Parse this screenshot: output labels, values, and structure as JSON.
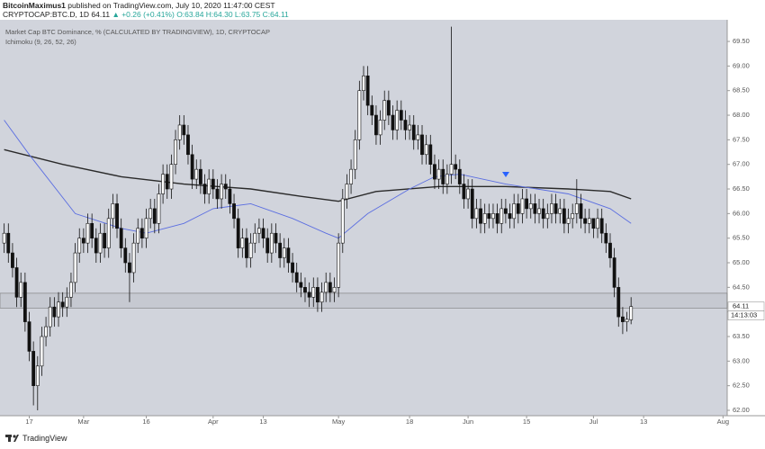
{
  "header": {
    "author": "BitcoinMaximus1",
    "published": "published on TradingView.com, July 10, 2020 11:47:00 CEST",
    "symbol": "CRYPTOCAP:BTC.D, 1D",
    "price": "64.11",
    "change": "▲ +0.26 (+0.41%)",
    "ohlc": "O:63.84 H:64.30 L:63.75 C:64.11"
  },
  "footer": {
    "brand": "TradingView"
  },
  "chart_data": {
    "type": "candlestick",
    "legend": [
      "Market Cap BTC Dominance, % (CALCULATED BY TRADINGVIEW), 1D, CRYPTOCAP",
      "Ichimoku (9, 26, 52, 26)"
    ],
    "x": [
      "2020-02-11",
      "2020-02-12",
      "2020-02-13",
      "2020-02-14",
      "2020-02-15",
      "2020-02-16",
      "2020-02-17",
      "2020-02-18",
      "2020-02-19",
      "2020-02-20",
      "2020-02-21",
      "2020-02-22",
      "2020-02-23",
      "2020-02-24",
      "2020-02-25",
      "2020-02-26",
      "2020-02-27",
      "2020-02-28",
      "2020-02-29",
      "2020-03-01",
      "2020-03-02",
      "2020-03-03",
      "2020-03-04",
      "2020-03-05",
      "2020-03-06",
      "2020-03-07",
      "2020-03-08",
      "2020-03-09",
      "2020-03-10",
      "2020-03-11",
      "2020-03-12",
      "2020-03-13",
      "2020-03-14",
      "2020-03-15",
      "2020-03-16",
      "2020-03-17",
      "2020-03-18",
      "2020-03-19",
      "2020-03-20",
      "2020-03-21",
      "2020-03-22",
      "2020-03-23",
      "2020-03-24",
      "2020-03-25",
      "2020-03-26",
      "2020-03-27",
      "2020-03-28",
      "2020-03-29",
      "2020-03-30",
      "2020-03-31",
      "2020-04-01",
      "2020-04-02",
      "2020-04-03",
      "2020-04-04",
      "2020-04-05",
      "2020-04-06",
      "2020-04-07",
      "2020-04-08",
      "2020-04-09",
      "2020-04-10",
      "2020-04-11",
      "2020-04-12",
      "2020-04-13",
      "2020-04-14",
      "2020-04-15",
      "2020-04-16",
      "2020-04-17",
      "2020-04-18",
      "2020-04-19",
      "2020-04-20",
      "2020-04-21",
      "2020-04-22",
      "2020-04-23",
      "2020-04-24",
      "2020-04-25",
      "2020-04-26",
      "2020-04-27",
      "2020-04-28",
      "2020-04-29",
      "2020-04-30",
      "2020-05-01",
      "2020-05-02",
      "2020-05-03",
      "2020-05-04",
      "2020-05-05",
      "2020-05-06",
      "2020-05-07",
      "2020-05-08",
      "2020-05-09",
      "2020-05-10",
      "2020-05-11",
      "2020-05-12",
      "2020-05-13",
      "2020-05-14",
      "2020-05-15",
      "2020-05-16",
      "2020-05-17",
      "2020-05-18",
      "2020-05-19",
      "2020-05-20",
      "2020-05-21",
      "2020-05-22",
      "2020-05-23",
      "2020-05-24",
      "2020-05-25",
      "2020-05-26",
      "2020-05-27",
      "2020-05-28",
      "2020-05-29",
      "2020-05-30",
      "2020-05-31",
      "2020-06-01",
      "2020-06-02",
      "2020-06-03",
      "2020-06-04",
      "2020-06-05",
      "2020-06-06",
      "2020-06-07",
      "2020-06-08",
      "2020-06-09",
      "2020-06-10",
      "2020-06-11",
      "2020-06-12",
      "2020-06-13",
      "2020-06-14",
      "2020-06-15",
      "2020-06-16",
      "2020-06-17",
      "2020-06-18",
      "2020-06-19",
      "2020-06-20",
      "2020-06-21",
      "2020-06-22",
      "2020-06-23",
      "2020-06-24",
      "2020-06-25",
      "2020-06-26",
      "2020-06-27",
      "2020-06-28",
      "2020-06-29",
      "2020-06-30",
      "2020-07-01",
      "2020-07-02",
      "2020-07-03",
      "2020-07-04",
      "2020-07-05",
      "2020-07-06",
      "2020-07-07",
      "2020-07-08",
      "2020-07-09",
      "2020-07-10"
    ],
    "open": [
      65.4,
      65.6,
      65.2,
      64.9,
      64.3,
      64.6,
      63.8,
      63.2,
      62.5,
      62.9,
      63.5,
      63.7,
      64.1,
      63.9,
      64.2,
      64.1,
      64.3,
      64.6,
      65.2,
      65.5,
      65.4,
      65.8,
      65.5,
      65.2,
      65.6,
      65.3,
      65.9,
      66.2,
      65.7,
      65.3,
      65.0,
      64.8,
      65.4,
      65.7,
      65.5,
      65.9,
      66.1,
      65.8,
      66.4,
      66.8,
      66.5,
      67.0,
      67.5,
      67.8,
      67.6,
      67.2,
      66.7,
      66.9,
      66.6,
      66.4,
      66.7,
      66.5,
      66.3,
      66.6,
      66.5,
      66.2,
      65.9,
      65.3,
      65.5,
      65.1,
      65.4,
      65.6,
      65.7,
      65.5,
      65.2,
      65.6,
      65.4,
      65.1,
      65.3,
      65.0,
      64.8,
      64.6,
      64.5,
      64.4,
      64.3,
      64.5,
      64.2,
      64.4,
      64.6,
      64.4,
      64.5,
      65.4,
      66.3,
      66.6,
      66.9,
      67.5,
      68.5,
      68.8,
      68.2,
      68.0,
      67.6,
      67.9,
      68.3,
      68.0,
      67.7,
      68.1,
      67.9,
      67.7,
      67.8,
      67.5,
      67.6,
      67.2,
      67.4,
      67.0,
      66.7,
      66.9,
      66.6,
      66.8,
      67.0,
      66.9,
      66.6,
      66.3,
      66.5,
      65.9,
      66.1,
      65.8,
      66.0,
      65.9,
      66.0,
      65.8,
      66.1,
      66.0,
      65.9,
      66.2,
      66.0,
      66.3,
      66.1,
      66.2,
      66.0,
      66.1,
      65.9,
      66.0,
      66.2,
      66.0,
      66.1,
      65.8,
      65.9,
      66.0,
      66.2,
      65.9,
      65.8,
      65.9,
      65.7,
      65.9,
      65.6,
      65.4,
      65.1,
      64.5,
      63.9,
      63.8,
      63.84
    ],
    "high": [
      65.8,
      65.8,
      65.4,
      65.1,
      64.8,
      64.8,
      64.0,
      63.4,
      63.1,
      63.7,
      63.9,
      64.3,
      64.3,
      64.4,
      64.4,
      64.5,
      64.8,
      65.4,
      65.7,
      65.7,
      66.0,
      66.0,
      65.7,
      65.8,
      65.8,
      66.1,
      66.4,
      66.4,
      65.9,
      65.5,
      65.2,
      65.6,
      65.9,
      65.9,
      66.1,
      66.3,
      66.3,
      66.6,
      67.0,
      67.0,
      67.2,
      67.7,
      68.0,
      68.0,
      67.8,
      67.4,
      67.1,
      67.1,
      66.8,
      66.9,
      66.9,
      66.7,
      66.8,
      66.8,
      66.7,
      66.4,
      66.1,
      65.7,
      65.7,
      65.6,
      65.8,
      65.9,
      65.9,
      65.7,
      65.8,
      65.8,
      65.6,
      65.5,
      65.5,
      65.2,
      65.0,
      64.8,
      64.7,
      64.6,
      64.7,
      64.7,
      64.6,
      64.8,
      64.8,
      64.7,
      65.6,
      66.5,
      66.8,
      67.1,
      67.7,
      68.7,
      69.0,
      69.0,
      68.4,
      68.2,
      68.1,
      68.5,
      68.5,
      68.2,
      68.3,
      68.3,
      68.1,
      68.0,
      68.0,
      67.8,
      67.8,
      67.6,
      67.6,
      67.2,
      67.1,
      67.1,
      67.0,
      69.8,
      67.2,
      67.1,
      66.8,
      66.7,
      66.7,
      66.3,
      66.3,
      66.2,
      66.2,
      66.2,
      66.2,
      66.3,
      66.3,
      66.2,
      66.4,
      66.4,
      66.5,
      66.5,
      66.4,
      66.4,
      66.3,
      66.3,
      66.2,
      66.4,
      66.4,
      66.3,
      66.3,
      66.1,
      66.2,
      66.7,
      66.4,
      66.1,
      66.1,
      65.9,
      66.1,
      66.1,
      65.8,
      65.6,
      65.3,
      64.7,
      64.1,
      64.0,
      64.3
    ],
    "low": [
      65.2,
      65.0,
      64.7,
      64.1,
      64.1,
      63.6,
      63.0,
      62.1,
      62.0,
      62.7,
      63.3,
      63.5,
      63.7,
      63.7,
      63.9,
      63.9,
      64.1,
      64.4,
      65.0,
      65.2,
      65.2,
      65.3,
      65.0,
      65.0,
      65.1,
      65.1,
      65.7,
      65.5,
      65.1,
      64.8,
      64.2,
      64.6,
      65.2,
      65.3,
      65.3,
      65.7,
      65.6,
      65.6,
      66.2,
      66.3,
      66.3,
      66.8,
      67.3,
      67.4,
      67.0,
      66.5,
      66.5,
      66.4,
      66.2,
      66.2,
      66.3,
      66.1,
      66.1,
      66.3,
      66.0,
      65.7,
      65.1,
      65.1,
      64.9,
      64.9,
      65.2,
      65.4,
      65.3,
      65.0,
      65.0,
      65.2,
      64.9,
      64.9,
      64.8,
      64.6,
      64.4,
      64.3,
      64.2,
      64.1,
      64.1,
      64.0,
      64.0,
      64.2,
      64.2,
      64.2,
      64.3,
      65.2,
      66.1,
      66.4,
      66.7,
      67.3,
      68.3,
      68.0,
      67.8,
      67.4,
      67.4,
      67.7,
      67.8,
      67.5,
      67.5,
      67.7,
      67.5,
      67.5,
      67.3,
      67.3,
      67.0,
      67.0,
      66.8,
      66.5,
      66.5,
      66.4,
      66.4,
      66.6,
      66.7,
      66.4,
      66.1,
      66.1,
      65.7,
      65.7,
      65.6,
      65.6,
      65.7,
      65.7,
      65.6,
      65.6,
      65.8,
      65.7,
      65.7,
      65.8,
      65.8,
      65.9,
      65.9,
      65.8,
      65.8,
      65.7,
      65.7,
      65.8,
      65.8,
      65.8,
      65.6,
      65.6,
      65.7,
      65.8,
      65.7,
      65.6,
      65.6,
      65.5,
      65.5,
      65.4,
      65.2,
      64.9,
      64.3,
      63.7,
      63.55,
      63.6,
      63.75
    ],
    "close": [
      65.6,
      65.2,
      64.9,
      64.3,
      64.6,
      63.8,
      63.2,
      62.5,
      62.9,
      63.5,
      63.7,
      64.1,
      63.9,
      64.2,
      64.1,
      64.3,
      64.6,
      65.2,
      65.5,
      65.4,
      65.8,
      65.5,
      65.2,
      65.6,
      65.3,
      65.9,
      66.2,
      65.7,
      65.3,
      65.0,
      64.8,
      65.4,
      65.7,
      65.5,
      65.9,
      66.1,
      65.8,
      66.4,
      66.8,
      66.5,
      67.0,
      67.5,
      67.8,
      67.6,
      67.2,
      66.7,
      66.9,
      66.6,
      66.4,
      66.7,
      66.5,
      66.3,
      66.6,
      66.5,
      66.2,
      65.9,
      65.3,
      65.5,
      65.1,
      65.4,
      65.6,
      65.7,
      65.5,
      65.2,
      65.6,
      65.4,
      65.1,
      65.3,
      65.0,
      64.8,
      64.6,
      64.5,
      64.4,
      64.3,
      64.5,
      64.2,
      64.4,
      64.6,
      64.4,
      64.5,
      65.4,
      66.3,
      66.6,
      66.9,
      67.5,
      68.5,
      68.8,
      68.2,
      68.0,
      67.6,
      67.9,
      68.3,
      68.0,
      67.7,
      68.1,
      67.9,
      67.7,
      67.8,
      67.5,
      67.6,
      67.2,
      67.4,
      67.0,
      66.7,
      66.9,
      66.6,
      66.8,
      67.0,
      66.9,
      66.6,
      66.3,
      66.5,
      65.9,
      66.1,
      65.8,
      66.0,
      65.9,
      66.0,
      65.8,
      66.1,
      66.0,
      65.9,
      66.2,
      66.0,
      66.3,
      66.1,
      66.2,
      66.0,
      66.1,
      65.9,
      66.0,
      66.2,
      66.0,
      66.1,
      65.8,
      65.9,
      66.0,
      66.2,
      65.9,
      65.8,
      65.9,
      65.7,
      65.9,
      65.6,
      65.4,
      65.1,
      64.5,
      63.9,
      63.8,
      63.85,
      64.11
    ],
    "lines": [
      {
        "color": "#2a2a2a",
        "x": [
          "2020-02-11",
          "2020-02-25",
          "2020-03-10",
          "2020-03-25",
          "2020-04-10",
          "2020-04-22",
          "2020-05-01",
          "2020-05-10",
          "2020-05-25",
          "2020-06-10",
          "2020-06-25",
          "2020-07-05",
          "2020-07-10"
        ],
        "values": [
          67.3,
          67.0,
          66.75,
          66.6,
          66.5,
          66.35,
          66.25,
          66.45,
          66.55,
          66.55,
          66.5,
          66.45,
          66.3
        ]
      },
      {
        "color": "#5b6ee1",
        "x": [
          "2020-02-11",
          "2020-02-17",
          "2020-02-28",
          "2020-03-10",
          "2020-03-16",
          "2020-03-25",
          "2020-04-01",
          "2020-04-10",
          "2020-04-20",
          "2020-04-28",
          "2020-05-01",
          "2020-05-08",
          "2020-05-18",
          "2020-05-24",
          "2020-05-30",
          "2020-06-10",
          "2020-06-25",
          "2020-07-05",
          "2020-07-10"
        ],
        "values": [
          67.9,
          67.2,
          66.0,
          65.7,
          65.6,
          65.8,
          66.1,
          66.2,
          65.9,
          65.6,
          65.5,
          66.0,
          66.5,
          66.75,
          66.8,
          66.6,
          66.4,
          66.1,
          65.8
        ]
      }
    ],
    "zone": [
      64.08,
      64.38
    ],
    "last_price": "64.11",
    "countdown": "14:13:03",
    "xlim": [
      "2020-02-10",
      "2020-08-02"
    ],
    "xticks": [
      {
        "value": "2020-02-17",
        "label": "17"
      },
      {
        "value": "2020-03-01",
        "label": "Mar"
      },
      {
        "value": "2020-03-16",
        "label": "16"
      },
      {
        "value": "2020-04-01",
        "label": "Apr"
      },
      {
        "value": "2020-04-13",
        "label": "13"
      },
      {
        "value": "2020-05-01",
        "label": "May"
      },
      {
        "value": "2020-05-18",
        "label": "18"
      },
      {
        "value": "2020-06-01",
        "label": "Jun"
      },
      {
        "value": "2020-06-15",
        "label": "15"
      },
      {
        "value": "2020-07-01",
        "label": "Jul"
      },
      {
        "value": "2020-07-13",
        "label": "13"
      },
      {
        "value": "2020-08-01",
        "label": "Aug"
      }
    ],
    "ylim": [
      61.89,
      69.94
    ],
    "yticks": [
      {
        "value": 62,
        "label": "62.00"
      },
      {
        "value": 62.5,
        "label": "62.50"
      },
      {
        "value": 63,
        "label": "63.00"
      },
      {
        "value": 63.5,
        "label": "63.50"
      },
      {
        "value": 64,
        "label": "64.00"
      },
      {
        "value": 64.5,
        "label": "64.50"
      },
      {
        "value": 65,
        "label": "65.00"
      },
      {
        "value": 65.5,
        "label": "65.50"
      },
      {
        "value": 66,
        "label": "66.00"
      },
      {
        "value": 66.5,
        "label": "66.50"
      },
      {
        "value": 67,
        "label": "67.00"
      },
      {
        "value": 67.5,
        "label": "67.50"
      },
      {
        "value": 68,
        "label": "68.00"
      },
      {
        "value": 68.5,
        "label": "68.50"
      },
      {
        "value": 69,
        "label": "69.00"
      },
      {
        "value": 69.5,
        "label": "69.50"
      }
    ],
    "grid": false
  }
}
